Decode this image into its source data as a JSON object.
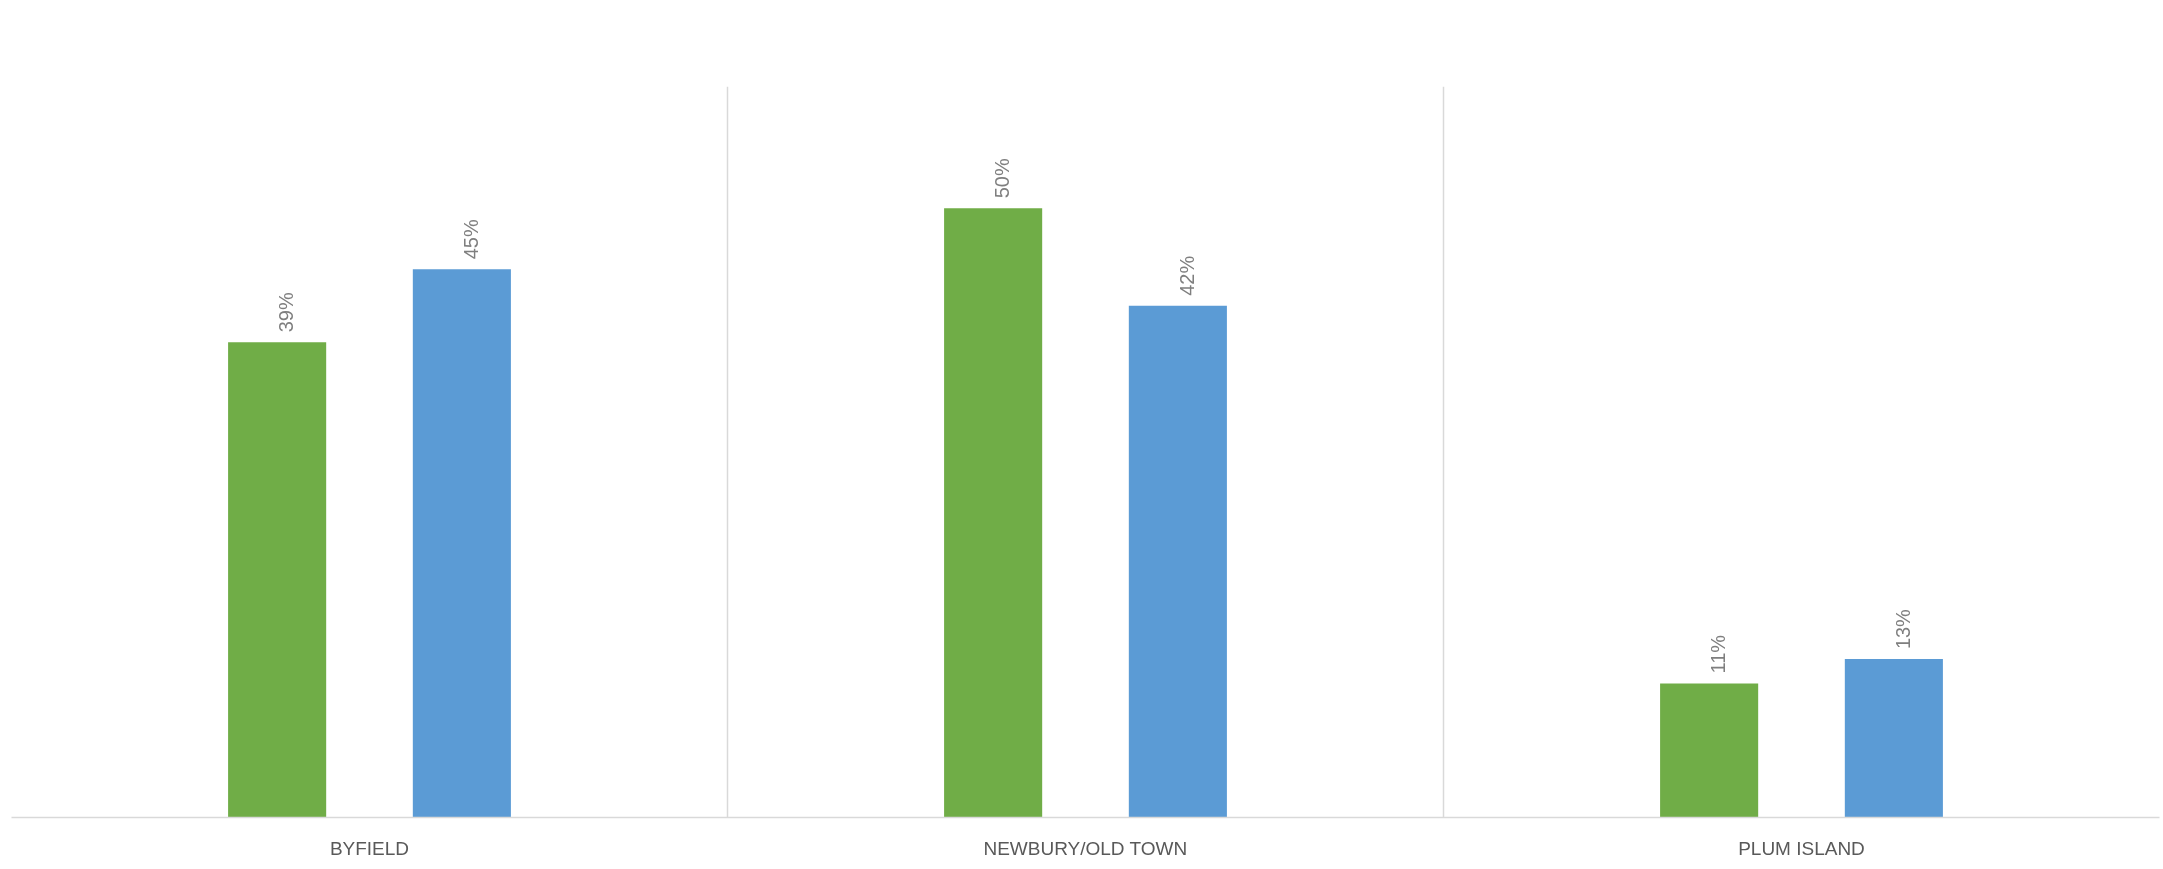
{
  "chart_data": {
    "type": "bar",
    "categories": [
      "BYFIELD",
      "NEWBURY/OLD TOWN",
      "PLUM ISLAND"
    ],
    "series": [
      {
        "color": "#70ad47",
        "values": [
          39,
          50,
          11
        ],
        "value_labels": [
          "39%",
          "50%",
          "11%"
        ]
      },
      {
        "color": "#5b9bd5",
        "values": [
          45,
          42,
          13
        ],
        "value_labels": [
          "45%",
          "42%",
          "13%"
        ]
      }
    ],
    "grid": "x"
  }
}
